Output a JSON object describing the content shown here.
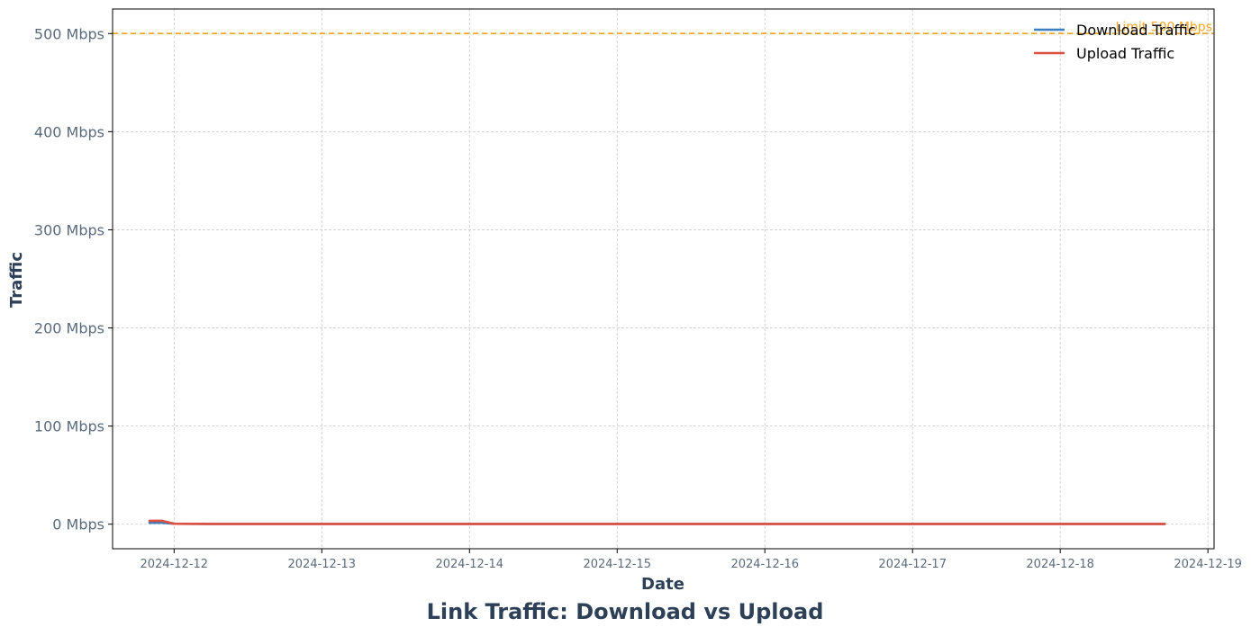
{
  "chart_data": {
    "type": "line",
    "title": "Link Traffic: Download vs Upload",
    "xlabel": "Date",
    "ylabel": "Traffic",
    "x_ticks": [
      "2024-12-12",
      "2024-12-13",
      "2024-12-14",
      "2024-12-15",
      "2024-12-16",
      "2024-12-17",
      "2024-12-18",
      "2024-12-19"
    ],
    "y_ticks": [
      {
        "value": 0,
        "label": "0 Mbps"
      },
      {
        "value": 100,
        "label": "100 Mbps"
      },
      {
        "value": 200,
        "label": "200 Mbps"
      },
      {
        "value": 300,
        "label": "300 Mbps"
      },
      {
        "value": 400,
        "label": "400 Mbps"
      },
      {
        "value": 500,
        "label": "500 Mbps"
      }
    ],
    "xlim": [
      "2024-12-11T14:00",
      "2024-12-19T01:00"
    ],
    "ylim": [
      -25,
      525
    ],
    "grid": true,
    "legend_position": "top-right",
    "limit": {
      "value": 500,
      "label": "Limit 500 Mbps",
      "color": "#f5a623"
    },
    "series": [
      {
        "name": "Download Traffic",
        "color": "#3a7ebf",
        "x": [
          "2024-12-11T20:00",
          "2024-12-11T22:00",
          "2024-12-12T00:00",
          "2024-12-12T06:00",
          "2024-12-13T00:00",
          "2024-12-14T00:00",
          "2024-12-15T00:00",
          "2024-12-16T00:00",
          "2024-12-17T00:00",
          "2024-12-18T00:00",
          "2024-12-18T17:00"
        ],
        "values": [
          1.5,
          1.5,
          0.5,
          0.3,
          0.3,
          0.3,
          0.3,
          0.3,
          0.3,
          0.3,
          0.3
        ]
      },
      {
        "name": "Upload Traffic",
        "color": "#e05040",
        "x": [
          "2024-12-11T20:00",
          "2024-12-11T22:00",
          "2024-12-12T00:00",
          "2024-12-12T06:00",
          "2024-12-13T00:00",
          "2024-12-14T00:00",
          "2024-12-15T00:00",
          "2024-12-16T00:00",
          "2024-12-17T00:00",
          "2024-12-18T00:00",
          "2024-12-18T17:00"
        ],
        "values": [
          3.5,
          3.5,
          0.5,
          0.3,
          0.3,
          0.3,
          0.3,
          0.3,
          0.3,
          0.3,
          0.3
        ]
      }
    ]
  }
}
